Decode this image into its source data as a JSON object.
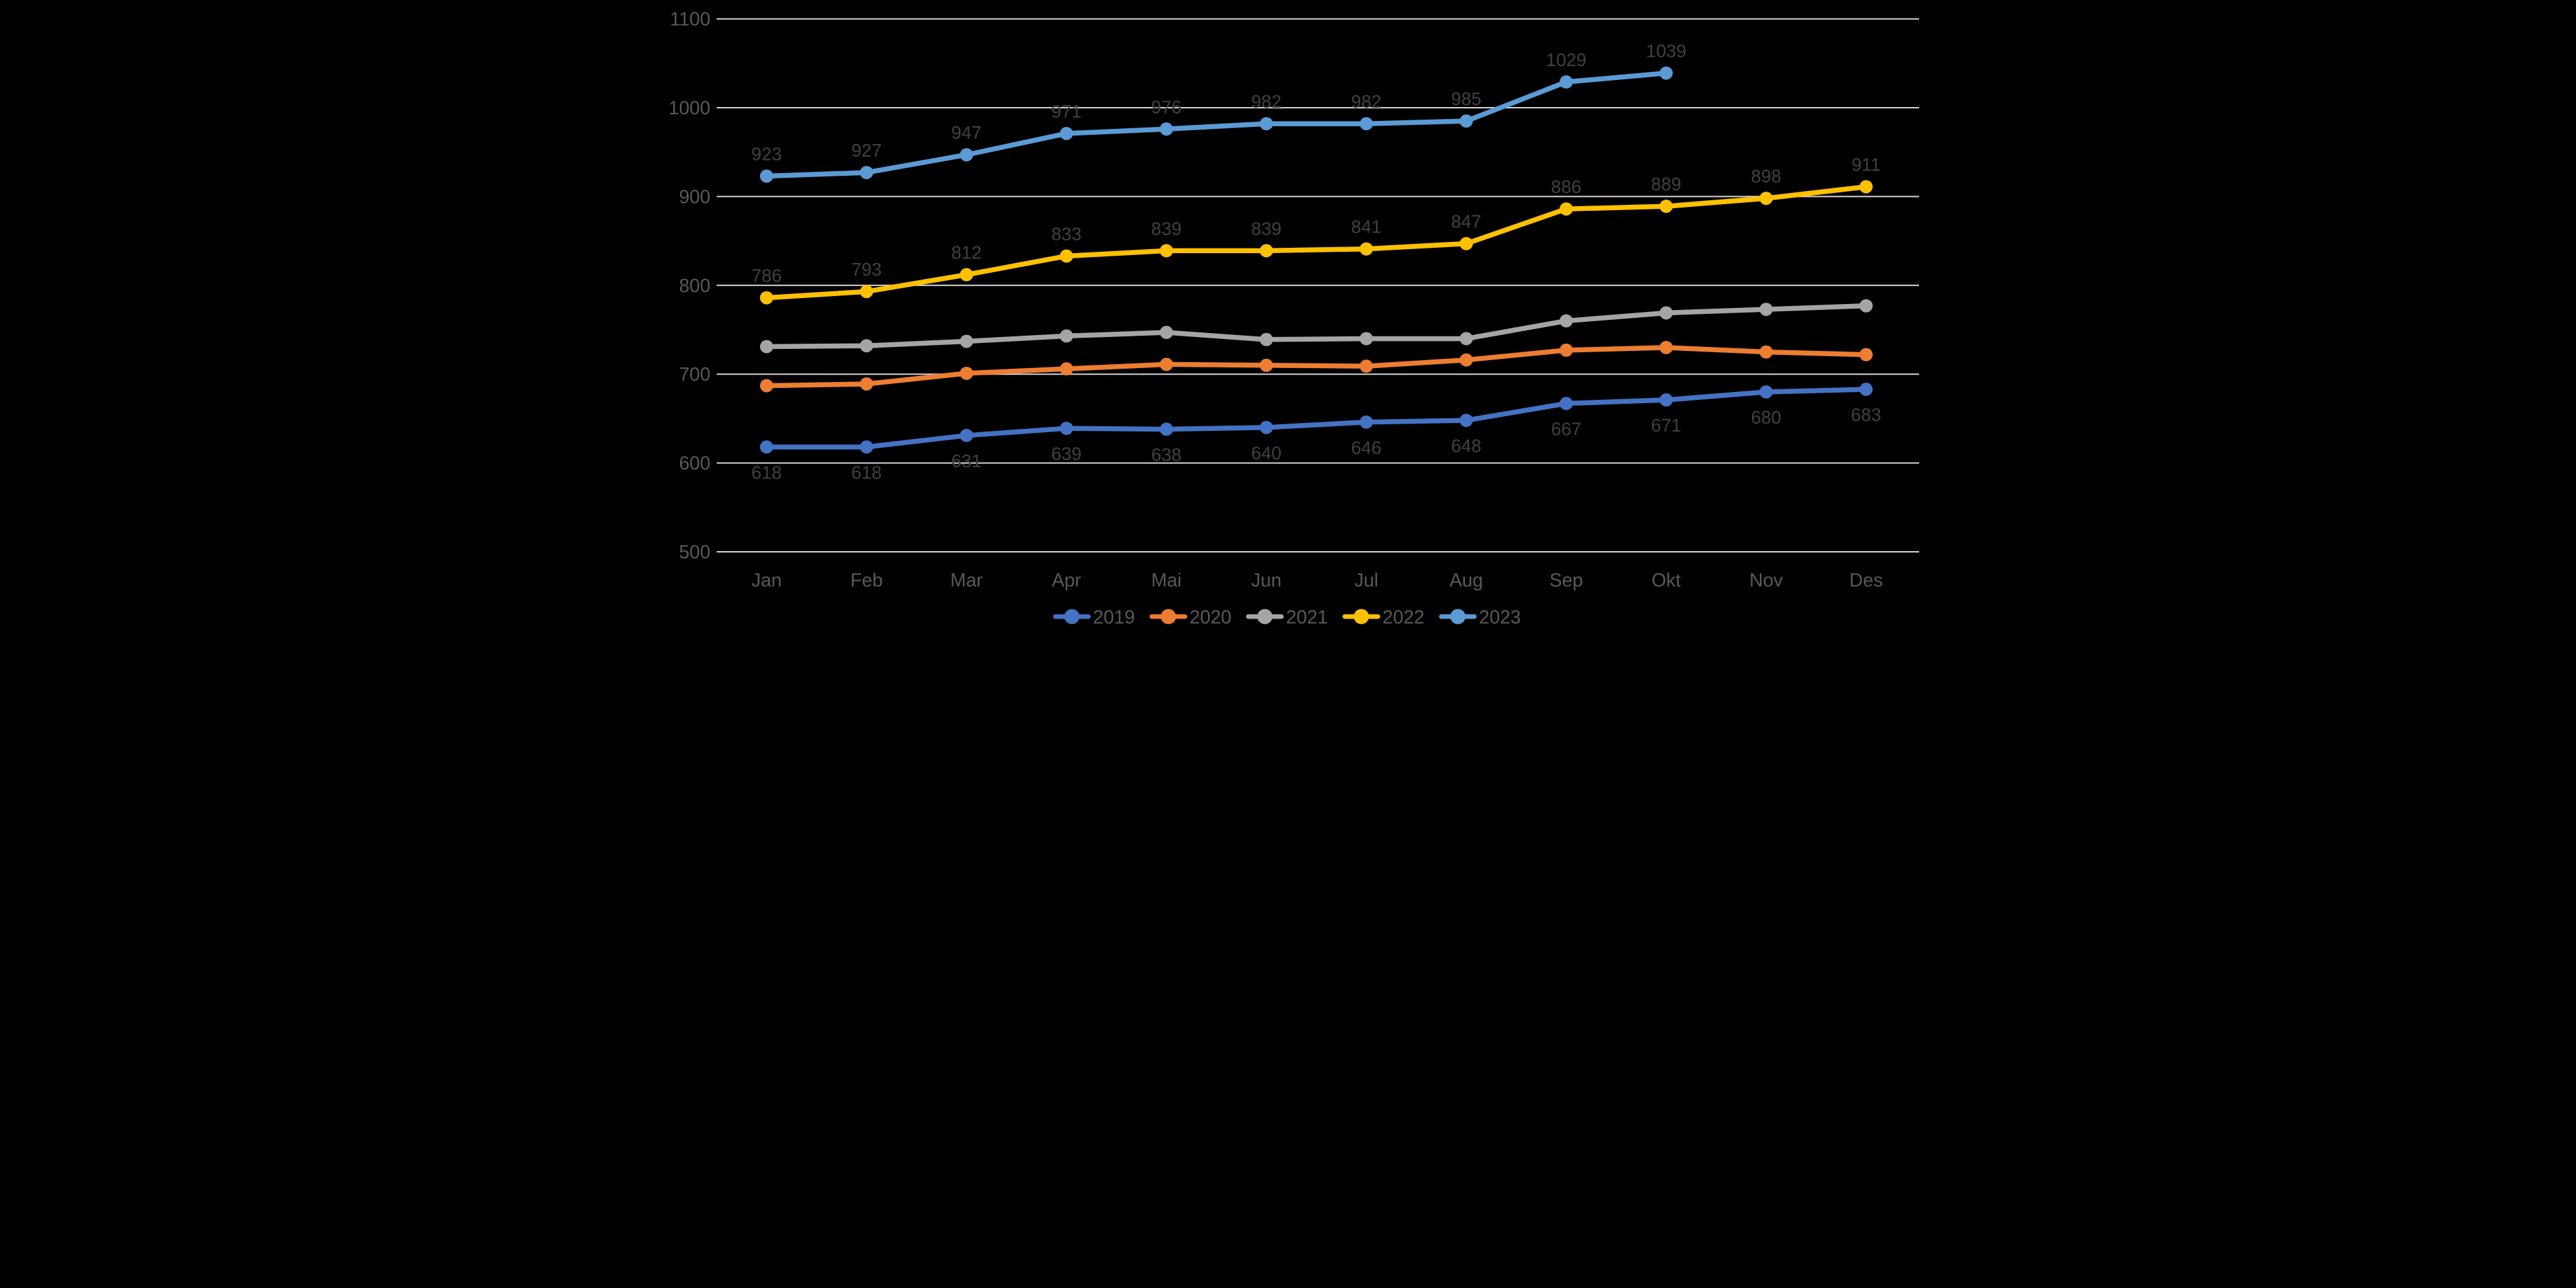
{
  "chart_data": {
    "type": "line",
    "title": "",
    "xlabel": "",
    "ylabel": "",
    "categories": [
      "Jan",
      "Feb",
      "Mar",
      "Apr",
      "Mai",
      "Jun",
      "Jul",
      "Aug",
      "Sep",
      "Okt",
      "Nov",
      "Des"
    ],
    "series": [
      {
        "name": "2019",
        "color": "#4472C4",
        "values": [
          618,
          618,
          631,
          639,
          638,
          640,
          646,
          648,
          667,
          671,
          680,
          683
        ],
        "show_labels": true,
        "label_position": "below"
      },
      {
        "name": "2020",
        "color": "#ED7D31",
        "values": [
          687,
          689,
          701,
          706,
          711,
          710,
          709,
          716,
          727,
          730,
          725,
          722
        ],
        "show_labels": false,
        "label_position": "none"
      },
      {
        "name": "2021",
        "color": "#A5A5A5",
        "values": [
          731,
          732,
          737,
          743,
          747,
          739,
          740,
          740,
          760,
          769,
          773,
          777
        ],
        "show_labels": false,
        "label_position": "none"
      },
      {
        "name": "2022",
        "color": "#FFC000",
        "values": [
          786,
          793,
          812,
          833,
          839,
          839,
          841,
          847,
          886,
          889,
          898,
          911
        ],
        "show_labels": true,
        "label_position": "above"
      },
      {
        "name": "2023",
        "color": "#5B9BD5",
        "values": [
          923,
          927,
          947,
          971,
          976,
          982,
          982,
          985,
          1029,
          1039
        ],
        "show_labels": true,
        "label_position": "above"
      }
    ],
    "ylim": [
      500,
      1100
    ],
    "yticks": [
      500,
      600,
      700,
      800,
      900,
      1000,
      1100
    ],
    "grid": "horizontal-only",
    "legend_position": "bottom-center",
    "legend_entries": [
      "2019",
      "2020",
      "2021",
      "2022",
      "2023"
    ]
  },
  "style": {
    "background_color": "#000000",
    "gridline_color": "#D9D9D9",
    "axis_label_color": "#595959",
    "data_label_color": "#404040",
    "legend_text_color": "#595959"
  }
}
